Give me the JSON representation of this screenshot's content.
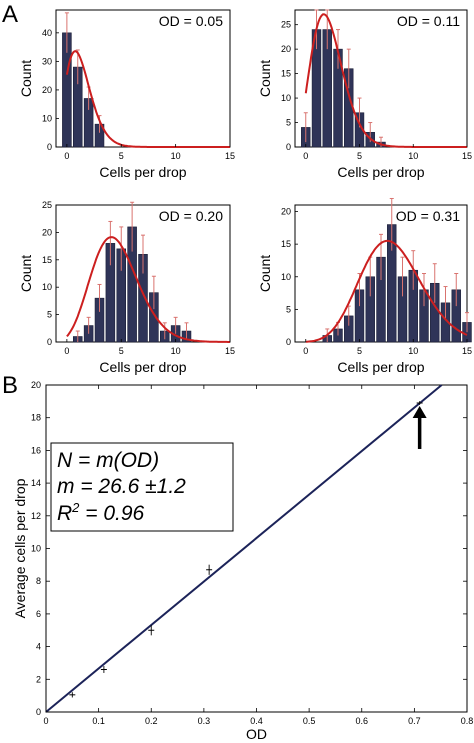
{
  "panel_labels": {
    "a": "A",
    "b": "B"
  },
  "annotation": {
    "line1": "N = m(OD)",
    "line2": "m = 26.6 ±1.2",
    "line3_prefix": "R",
    "line3_sup": "2",
    "line3_suffix": " = 0.96"
  },
  "colors": {
    "bar": "#2f3458",
    "fit": "#cc1f1f",
    "errorbar": "#d9736f",
    "line": "#1c2359"
  },
  "chart_data": [
    {
      "type": "bar",
      "annotation": "OD = 0.05",
      "xlabel": "Cells per drop",
      "ylabel": "Count",
      "xlim": [
        -1,
        15
      ],
      "ylim": [
        0,
        48
      ],
      "xticks": [
        0,
        5,
        10,
        15
      ],
      "yticks": [
        0,
        10,
        20,
        30,
        40
      ],
      "x": [
        0,
        1,
        2,
        3
      ],
      "values": [
        40,
        28,
        17,
        8
      ],
      "errors": [
        7,
        6,
        4,
        3
      ],
      "fit": {
        "type": "poisson",
        "amplitude": 93,
        "mean": 1.3
      }
    },
    {
      "type": "bar",
      "annotation": "OD = 0.11",
      "xlabel": "Cells per drop",
      "ylabel": "Count",
      "xlim": [
        -1,
        15
      ],
      "ylim": [
        0,
        28
      ],
      "xticks": [
        0,
        5,
        10,
        15
      ],
      "yticks": [
        0,
        5,
        10,
        15,
        20,
        25
      ],
      "x": [
        0,
        1,
        2,
        3,
        4,
        5,
        6,
        7
      ],
      "values": [
        4,
        24,
        24,
        20,
        16,
        7,
        3,
        1
      ],
      "errors": [
        3,
        4,
        4,
        4,
        4,
        3,
        2,
        1
      ],
      "fit": {
        "type": "poisson",
        "amplitude": 99,
        "mean": 2.2
      }
    },
    {
      "type": "bar",
      "annotation": "OD = 0.20",
      "xlabel": "Cells per drop",
      "ylabel": "Count",
      "xlim": [
        -1,
        15
      ],
      "ylim": [
        0,
        25
      ],
      "xticks": [
        0,
        5,
        10,
        15
      ],
      "yticks": [
        0,
        5,
        10,
        15,
        20,
        25
      ],
      "x": [
        1,
        2,
        3,
        4,
        5,
        6,
        7,
        8,
        9,
        10,
        11
      ],
      "values": [
        1,
        3,
        8,
        18,
        17,
        21,
        16,
        9,
        2,
        3,
        2
      ],
      "errors": [
        1,
        1.5,
        2.5,
        4,
        4,
        4.5,
        3.5,
        3,
        1.5,
        1.5,
        1.5
      ],
      "fit": {
        "type": "poisson",
        "amplitude": 102,
        "mean": 4.6
      }
    },
    {
      "type": "bar",
      "annotation": "OD = 0.31",
      "xlabel": "Cells per drop",
      "ylabel": "Count",
      "xlim": [
        -1,
        15
      ],
      "ylim": [
        0,
        21
      ],
      "xticks": [
        0,
        5,
        10,
        15
      ],
      "yticks": [
        0,
        5,
        10,
        15,
        20
      ],
      "x": [
        2,
        3,
        4,
        5,
        6,
        7,
        8,
        9,
        10,
        11,
        12,
        13,
        14,
        15
      ],
      "values": [
        1,
        2,
        4,
        8,
        10,
        13,
        18,
        10,
        11,
        8,
        9,
        6,
        8,
        3
      ],
      "errors": [
        1,
        1,
        1.5,
        2.5,
        3,
        3.5,
        4,
        3,
        3,
        2.5,
        3,
        2.5,
        2.5,
        1.5
      ],
      "fit": {
        "type": "poisson",
        "amplitude": 110,
        "mean": 8.1
      }
    },
    {
      "type": "scatter",
      "xlabel": "OD",
      "ylabel": "Average cells per drop",
      "xlim": [
        0,
        0.8
      ],
      "ylim": [
        0,
        20
      ],
      "xticks": [
        0,
        0.1,
        0.2,
        0.3,
        0.4,
        0.5,
        0.6,
        0.7,
        0.8
      ],
      "yticks": [
        0,
        2,
        4,
        6,
        8,
        10,
        12,
        14,
        16,
        18,
        20
      ],
      "x": [
        0.05,
        0.11,
        0.2,
        0.31,
        0.71
      ],
      "y": [
        1.05,
        2.6,
        5.0,
        8.7,
        18.9
      ],
      "yerr": [
        0.1,
        0.15,
        0.25,
        0.25,
        0.05
      ],
      "fit": {
        "slope": 26.6,
        "intercept": 0
      },
      "arrow_at": {
        "x": 0.71,
        "y": 18.9
      }
    }
  ]
}
